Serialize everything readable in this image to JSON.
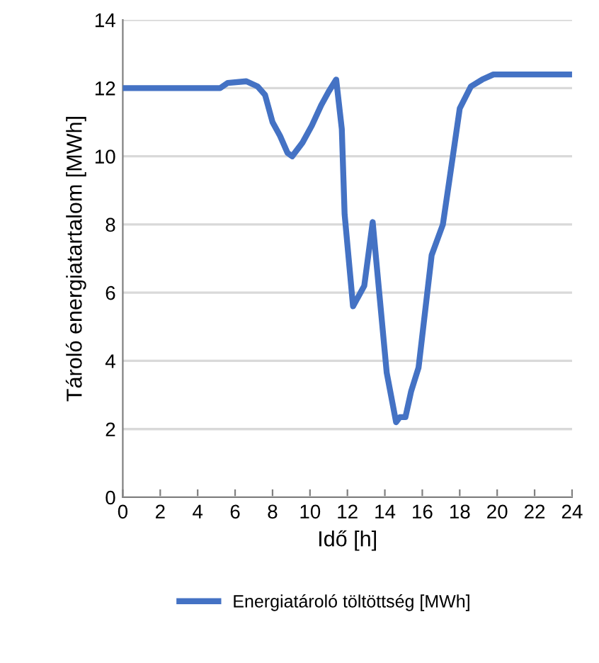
{
  "chart_data": {
    "type": "line",
    "xlabel": "Idő [h]",
    "ylabel": "Tároló energiatartalom [MWh]",
    "series": [
      {
        "name": "Energiatároló töltöttség [MWh]",
        "color": "#4472c4",
        "x": [
          0,
          5.2,
          5.6,
          6.6,
          7.2,
          7.6,
          8.0,
          8.4,
          8.8,
          9.05,
          9.6,
          10.1,
          10.6,
          11.0,
          11.4,
          11.7,
          11.85,
          12.3,
          12.9,
          13.35,
          13.7,
          14.1,
          14.6,
          14.8,
          15.1,
          15.4,
          15.8,
          16.5,
          17.1,
          17.5,
          18.0,
          18.6,
          19.2,
          19.8,
          24
        ],
        "values": [
          12.0,
          12.0,
          12.15,
          12.2,
          12.05,
          11.8,
          11.0,
          10.6,
          10.1,
          10.0,
          10.4,
          10.9,
          11.5,
          11.9,
          12.25,
          10.8,
          8.3,
          5.6,
          6.2,
          8.07,
          6.0,
          3.65,
          2.2,
          2.35,
          2.35,
          3.1,
          3.8,
          7.1,
          8.0,
          9.5,
          11.4,
          12.05,
          12.25,
          12.4,
          12.4
        ]
      }
    ],
    "xlim": [
      0,
      24
    ],
    "xticks": [
      0,
      2,
      4,
      6,
      8,
      10,
      12,
      14,
      16,
      18,
      20,
      22,
      24
    ],
    "ylim": [
      0,
      14
    ],
    "yticks": [
      0,
      2,
      4,
      6,
      8,
      10,
      12,
      14
    ],
    "grid": "y",
    "legend": "bottom",
    "marker": "none",
    "line_style": "solid"
  }
}
